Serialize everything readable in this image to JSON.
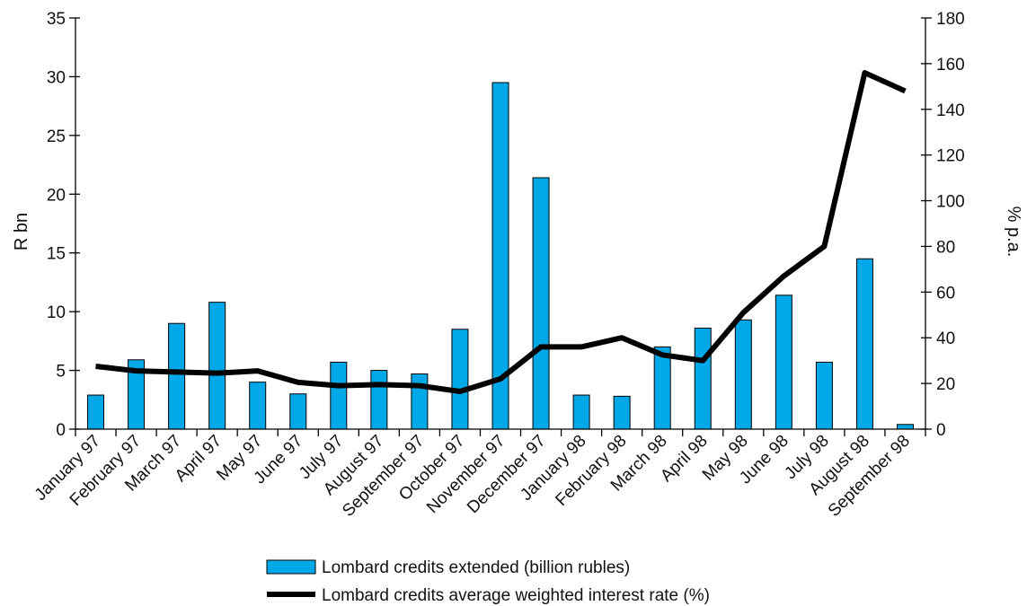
{
  "chart_data": {
    "type": "bar",
    "title": "",
    "categories": [
      "January 97",
      "February 97",
      "March 97",
      "April 97",
      "May 97",
      "June 97",
      "July 97",
      "August 97",
      "September 97",
      "October 97",
      "November 97",
      "December 97",
      "January 98",
      "February 98",
      "March 98",
      "April 98",
      "May 98",
      "June 98",
      "July 98",
      "August 98",
      "September 98"
    ],
    "series": [
      {
        "name": "Lombard credits extended (billion rubles)",
        "type": "bar",
        "axis": "left",
        "color": "#00a8e8",
        "values": [
          2.9,
          5.9,
          9.0,
          10.8,
          4.0,
          3.0,
          5.7,
          5.0,
          4.7,
          8.5,
          29.5,
          21.4,
          2.9,
          2.8,
          7.0,
          8.6,
          9.3,
          11.4,
          5.7,
          14.5,
          0.4
        ]
      },
      {
        "name": "Lombard credits average weighted interest rate (%)",
        "type": "line",
        "axis": "right",
        "color": "#000000",
        "values": [
          27.5,
          25.5,
          25.0,
          24.5,
          25.5,
          20.5,
          19.0,
          19.5,
          19.0,
          16.5,
          22.0,
          36.0,
          36.0,
          40.0,
          32.5,
          30.0,
          51.0,
          67.0,
          80.0,
          156.0,
          148.0
        ]
      }
    ],
    "y_left": {
      "label": "R bn",
      "ticks": [
        "0",
        "5",
        "10",
        "15",
        "20",
        "25",
        "30",
        "35"
      ],
      "range": [
        0,
        35
      ]
    },
    "y_right": {
      "label": "% p.a.",
      "ticks": [
        "0",
        "20",
        "40",
        "60",
        "80",
        "100",
        "120",
        "140",
        "160",
        "180"
      ],
      "range": [
        0,
        180
      ]
    },
    "grid": false,
    "legend_position": "bottom"
  }
}
